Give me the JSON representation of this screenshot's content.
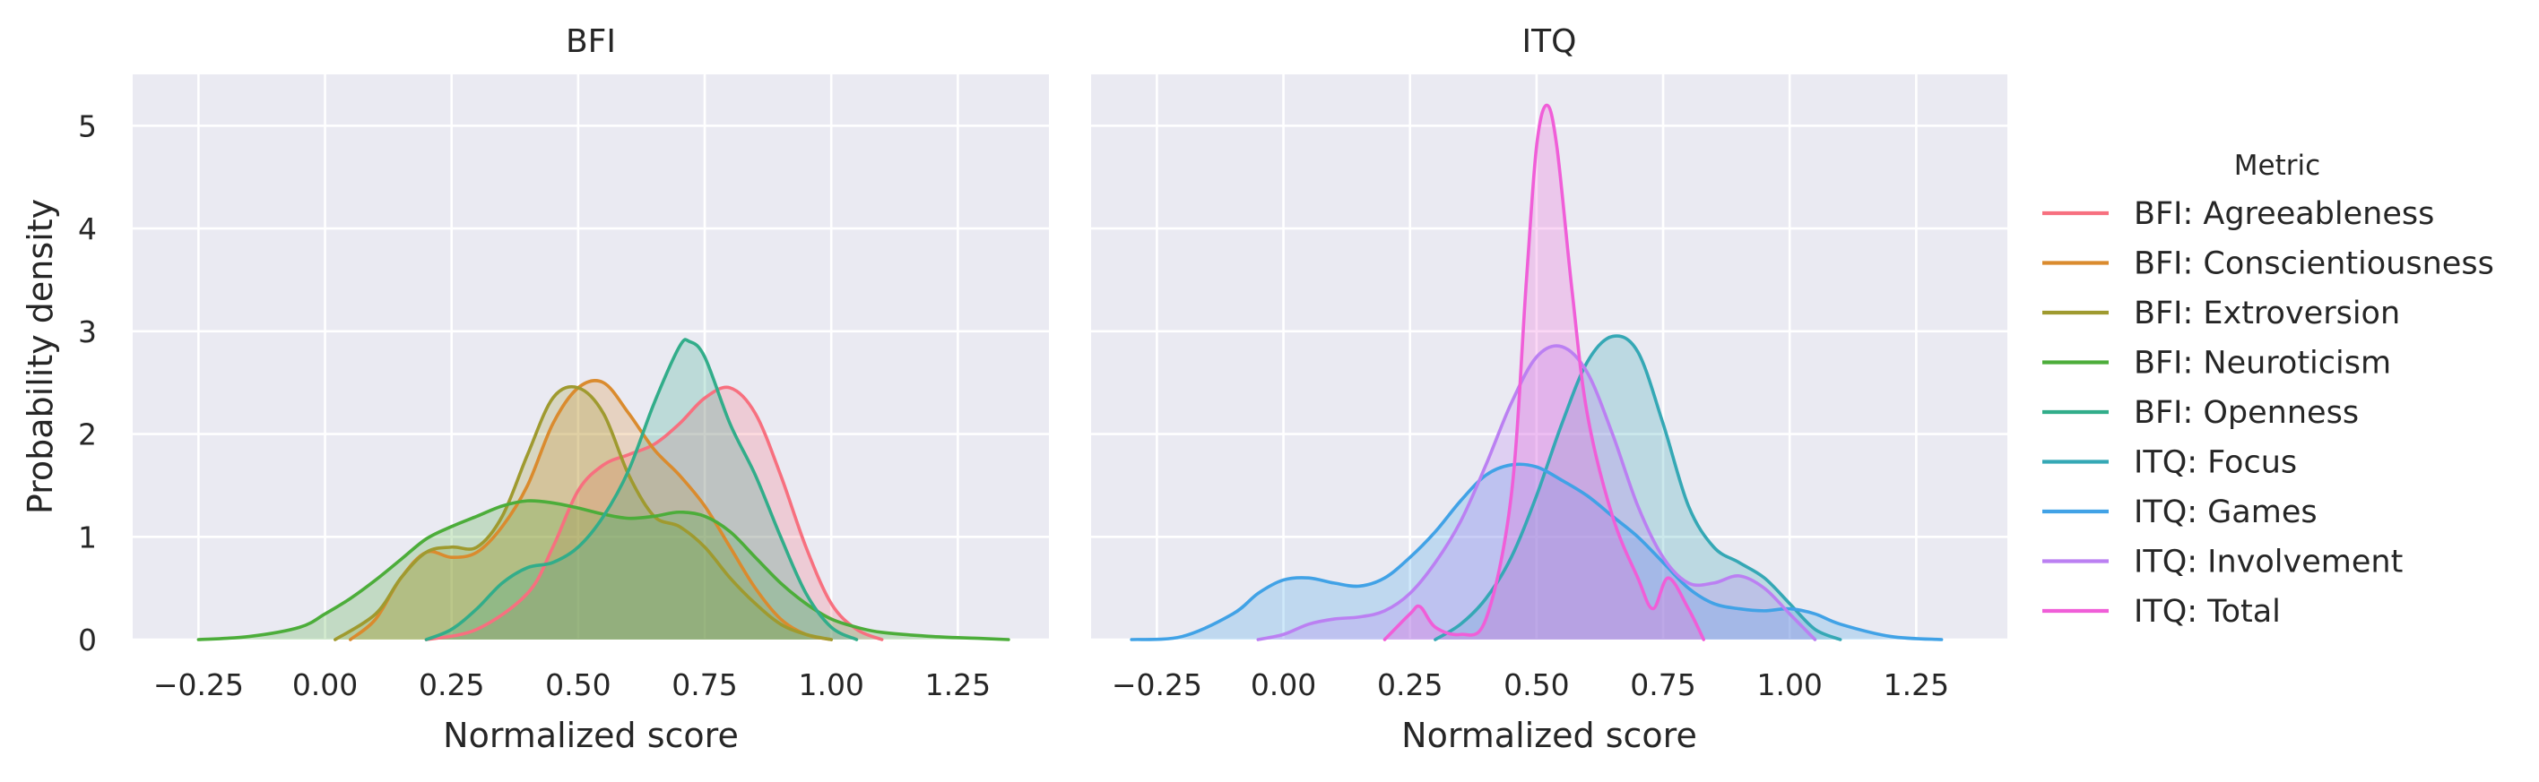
{
  "chart_data": {
    "type": "area",
    "ylabel": "Probability density",
    "legend": {
      "title": "Metric",
      "placement": "right"
    },
    "grid": true,
    "colors": {
      "BFI: Agreeableness": "#f7707f",
      "BFI: Conscientiousness": "#da8b2e",
      "BFI: Extroversion": "#9f9a2f",
      "BFI: Neuroticism": "#4cad3a",
      "BFI: Openness": "#32ad8a",
      "ITQ: Focus": "#35a8b5",
      "ITQ: Games": "#41a2e6",
      "ITQ: Involvement": "#bb80f2",
      "ITQ: Total": "#f05ed8"
    },
    "panels": [
      {
        "title": "BFI",
        "xlabel": "Normalized score",
        "xlim": [
          -0.38,
          1.43
        ],
        "ylim": [
          0,
          5.5
        ],
        "xticks": [
          "−0.25",
          "0.00",
          "0.25",
          "0.50",
          "0.75",
          "1.00",
          "1.25"
        ],
        "xtick_values": [
          -0.25,
          0,
          0.25,
          0.5,
          0.75,
          1.0,
          1.25
        ],
        "yticks": [
          "0",
          "1",
          "2",
          "3",
          "4",
          "5"
        ],
        "ytick_values": [
          0,
          1,
          2,
          3,
          4,
          5
        ],
        "series": [
          {
            "name": "BFI: Agreeableness",
            "x": [
              0.2,
              0.3,
              0.4,
              0.45,
              0.5,
              0.55,
              0.6,
              0.65,
              0.7,
              0.75,
              0.8,
              0.85,
              0.9,
              0.95,
              1.0,
              1.05,
              1.1
            ],
            "y": [
              0,
              0.1,
              0.45,
              0.9,
              1.45,
              1.7,
              1.8,
              1.9,
              2.1,
              2.35,
              2.45,
              2.2,
              1.6,
              0.9,
              0.35,
              0.1,
              0
            ]
          },
          {
            "name": "BFI: Conscientiousness",
            "x": [
              0.05,
              0.1,
              0.15,
              0.2,
              0.25,
              0.3,
              0.35,
              0.4,
              0.45,
              0.5,
              0.55,
              0.6,
              0.65,
              0.7,
              0.75,
              0.8,
              0.85,
              0.9,
              0.95,
              1.0
            ],
            "y": [
              0,
              0.2,
              0.6,
              0.85,
              0.8,
              0.85,
              1.1,
              1.5,
              2.1,
              2.45,
              2.5,
              2.2,
              1.85,
              1.6,
              1.3,
              0.9,
              0.5,
              0.2,
              0.05,
              0
            ]
          },
          {
            "name": "BFI: Extroversion",
            "x": [
              0.02,
              0.1,
              0.15,
              0.2,
              0.25,
              0.3,
              0.35,
              0.4,
              0.45,
              0.5,
              0.55,
              0.6,
              0.65,
              0.7,
              0.75,
              0.8,
              0.85,
              0.9,
              0.95,
              1.0
            ],
            "y": [
              0,
              0.25,
              0.6,
              0.85,
              0.9,
              0.9,
              1.2,
              1.8,
              2.35,
              2.45,
              2.2,
              1.6,
              1.2,
              1.1,
              0.9,
              0.6,
              0.35,
              0.15,
              0.05,
              0
            ]
          },
          {
            "name": "BFI: Neuroticism",
            "x": [
              -0.25,
              -0.15,
              -0.05,
              0.0,
              0.05,
              0.1,
              0.15,
              0.2,
              0.25,
              0.3,
              0.35,
              0.4,
              0.45,
              0.5,
              0.55,
              0.6,
              0.65,
              0.7,
              0.75,
              0.8,
              0.85,
              0.9,
              0.95,
              1.0,
              1.05,
              1.1,
              1.2,
              1.3,
              1.35
            ],
            "y": [
              0,
              0.03,
              0.12,
              0.25,
              0.4,
              0.58,
              0.78,
              0.98,
              1.1,
              1.2,
              1.3,
              1.35,
              1.33,
              1.28,
              1.22,
              1.18,
              1.2,
              1.24,
              1.2,
              1.05,
              0.8,
              0.55,
              0.35,
              0.2,
              0.12,
              0.07,
              0.03,
              0.01,
              0
            ]
          },
          {
            "name": "BFI: Openness",
            "x": [
              0.2,
              0.25,
              0.3,
              0.35,
              0.4,
              0.45,
              0.5,
              0.55,
              0.6,
              0.65,
              0.7,
              0.72,
              0.75,
              0.8,
              0.85,
              0.9,
              0.95,
              1.0,
              1.05
            ],
            "y": [
              0,
              0.1,
              0.3,
              0.55,
              0.7,
              0.75,
              0.9,
              1.2,
              1.65,
              2.3,
              2.85,
              2.9,
              2.75,
              2.1,
              1.6,
              1.0,
              0.45,
              0.12,
              0
            ]
          }
        ]
      },
      {
        "title": "ITQ",
        "xlabel": "Normalized score",
        "xlim": [
          -0.38,
          1.43
        ],
        "ylim": [
          0,
          5.5
        ],
        "xticks": [
          "−0.25",
          "0.00",
          "0.25",
          "0.50",
          "0.75",
          "1.00",
          "1.25"
        ],
        "xtick_values": [
          -0.25,
          0,
          0.25,
          0.5,
          0.75,
          1.0,
          1.25
        ],
        "series": [
          {
            "name": "ITQ: Focus",
            "x": [
              0.3,
              0.35,
              0.4,
              0.45,
              0.5,
              0.55,
              0.6,
              0.65,
              0.7,
              0.75,
              0.8,
              0.85,
              0.9,
              0.95,
              1.0,
              1.05,
              1.1
            ],
            "y": [
              0,
              0.15,
              0.4,
              0.8,
              1.4,
              2.1,
              2.7,
              2.95,
              2.8,
              2.1,
              1.3,
              0.9,
              0.75,
              0.6,
              0.35,
              0.1,
              0
            ]
          },
          {
            "name": "ITQ: Games",
            "x": [
              -0.3,
              -0.2,
              -0.1,
              -0.05,
              0.0,
              0.05,
              0.1,
              0.15,
              0.2,
              0.25,
              0.3,
              0.35,
              0.4,
              0.45,
              0.5,
              0.55,
              0.6,
              0.65,
              0.7,
              0.75,
              0.8,
              0.85,
              0.9,
              0.95,
              1.0,
              1.05,
              1.1,
              1.2,
              1.3
            ],
            "y": [
              0,
              0.03,
              0.25,
              0.45,
              0.58,
              0.6,
              0.55,
              0.52,
              0.6,
              0.8,
              1.05,
              1.35,
              1.6,
              1.7,
              1.68,
              1.55,
              1.4,
              1.2,
              1.0,
              0.75,
              0.5,
              0.35,
              0.3,
              0.28,
              0.3,
              0.25,
              0.15,
              0.03,
              0
            ]
          },
          {
            "name": "ITQ: Involvement",
            "x": [
              -0.05,
              0.0,
              0.05,
              0.1,
              0.15,
              0.2,
              0.25,
              0.3,
              0.35,
              0.4,
              0.45,
              0.5,
              0.55,
              0.6,
              0.65,
              0.7,
              0.75,
              0.8,
              0.85,
              0.9,
              0.95,
              1.0,
              1.05
            ],
            "y": [
              0,
              0.05,
              0.15,
              0.2,
              0.22,
              0.28,
              0.45,
              0.75,
              1.15,
              1.7,
              2.3,
              2.75,
              2.85,
              2.6,
              2.0,
              1.3,
              0.8,
              0.55,
              0.55,
              0.62,
              0.5,
              0.25,
              0
            ]
          },
          {
            "name": "ITQ: Total",
            "x": [
              0.2,
              0.25,
              0.27,
              0.3,
              0.35,
              0.4,
              0.45,
              0.48,
              0.5,
              0.52,
              0.54,
              0.57,
              0.6,
              0.65,
              0.7,
              0.73,
              0.76,
              0.8,
              0.83
            ],
            "y": [
              0,
              0.25,
              0.32,
              0.12,
              0.05,
              0.2,
              1.4,
              3.5,
              4.8,
              5.2,
              4.8,
              3.4,
              2.2,
              1.2,
              0.6,
              0.3,
              0.6,
              0.3,
              0
            ]
          }
        ]
      }
    ]
  }
}
